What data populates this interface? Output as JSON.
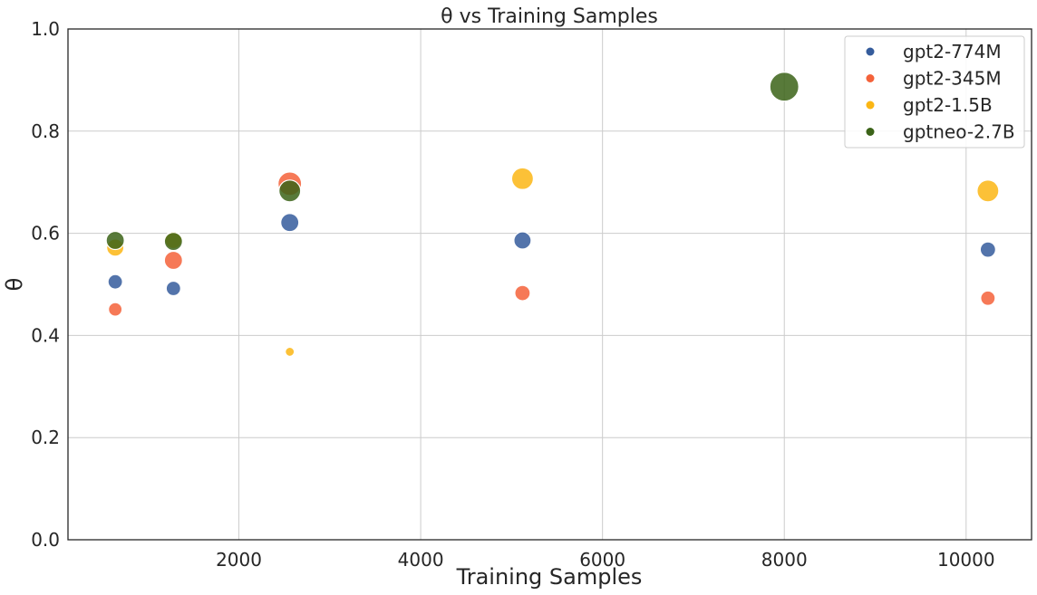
{
  "chart_data": {
    "type": "scatter",
    "title": "θ vs Training Samples",
    "xlabel": "Training Samples",
    "ylabel": "θ",
    "xlim": [
      120,
      10720
    ],
    "ylim": [
      0.0,
      1.0
    ],
    "xticks": [
      2000,
      4000,
      6000,
      8000,
      10000
    ],
    "yticks": [
      0.0,
      0.2,
      0.4,
      0.6,
      0.8,
      1.0
    ],
    "ytick_labels": [
      "0.0",
      "0.2",
      "0.4",
      "0.6",
      "0.8",
      "1.0"
    ],
    "grid": true,
    "legend_position": "top-right",
    "series": [
      {
        "name": "gpt2-774M",
        "color": "#355c9c",
        "points": [
          {
            "x": 640,
            "y": 0.505,
            "size": 16
          },
          {
            "x": 1280,
            "y": 0.492,
            "size": 16
          },
          {
            "x": 2560,
            "y": 0.621,
            "size": 20
          },
          {
            "x": 5120,
            "y": 0.586,
            "size": 19
          },
          {
            "x": 10240,
            "y": 0.568,
            "size": 17
          }
        ]
      },
      {
        "name": "gpt2-345M",
        "color": "#f4623a",
        "points": [
          {
            "x": 640,
            "y": 0.451,
            "size": 15
          },
          {
            "x": 1280,
            "y": 0.547,
            "size": 20
          },
          {
            "x": 2560,
            "y": 0.697,
            "size": 26
          },
          {
            "x": 5120,
            "y": 0.483,
            "size": 17
          },
          {
            "x": 10240,
            "y": 0.473,
            "size": 16
          }
        ]
      },
      {
        "name": "gpt2-1.5B",
        "color": "#fbb614",
        "points": [
          {
            "x": 640,
            "y": 0.572,
            "size": 19
          },
          {
            "x": 1280,
            "y": 0.587,
            "size": 19
          },
          {
            "x": 2560,
            "y": 0.368,
            "size": 10
          },
          {
            "x": 5120,
            "y": 0.707,
            "size": 24
          },
          {
            "x": 10240,
            "y": 0.683,
            "size": 24
          }
        ]
      },
      {
        "name": "gptneo-2.7B",
        "color": "#3b6318",
        "points": [
          {
            "x": 640,
            "y": 0.586,
            "size": 20
          },
          {
            "x": 1280,
            "y": 0.584,
            "size": 20
          },
          {
            "x": 2560,
            "y": 0.683,
            "size": 24
          },
          {
            "x": 8000,
            "y": 0.887,
            "size": 32
          }
        ]
      }
    ]
  }
}
